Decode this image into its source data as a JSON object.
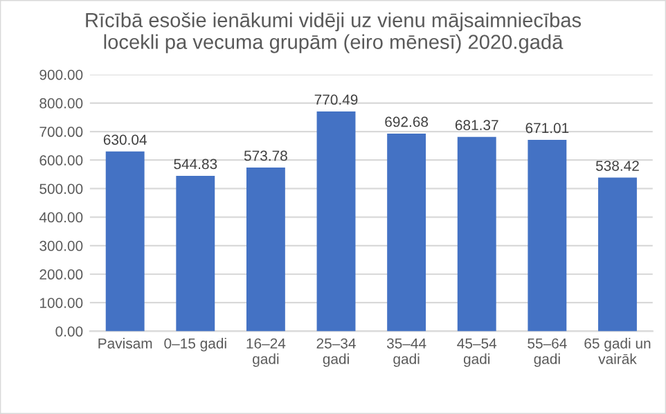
{
  "chart_data": {
    "type": "bar",
    "title": "Rīcībā esošie ienākumi vidēji uz vienu mājsaimniecības\nlocekli pa vecuma grupām (eiro mēnesī) 2020.gadā",
    "categories": [
      "Pavisam",
      "0–15 gadi",
      "16–24\ngadi",
      "25–34\ngadi",
      "35–44\ngadi",
      "45–54\ngadi",
      "55–64\ngadi",
      "65 gadi un\nvairāk"
    ],
    "values": [
      630.04,
      544.83,
      573.78,
      770.49,
      692.68,
      681.37,
      671.01,
      538.42
    ],
    "value_labels": [
      "630.04",
      "544.83",
      "573.78",
      "770.49",
      "692.68",
      "681.37",
      "671.01",
      "538.42"
    ],
    "color": "#4472c4",
    "ylim": [
      0,
      900
    ],
    "yticks": [
      {
        "value": 0,
        "label": "0.00"
      },
      {
        "value": 100,
        "label": "100.00"
      },
      {
        "value": 200,
        "label": "200.00"
      },
      {
        "value": 300,
        "label": "300.00"
      },
      {
        "value": 400,
        "label": "400.00"
      },
      {
        "value": 500,
        "label": "500.00"
      },
      {
        "value": 600,
        "label": "600.00"
      },
      {
        "value": 700,
        "label": "700.00"
      },
      {
        "value": 800,
        "label": "800.00"
      },
      {
        "value": 900,
        "label": "900.00"
      }
    ],
    "grid": "y"
  }
}
